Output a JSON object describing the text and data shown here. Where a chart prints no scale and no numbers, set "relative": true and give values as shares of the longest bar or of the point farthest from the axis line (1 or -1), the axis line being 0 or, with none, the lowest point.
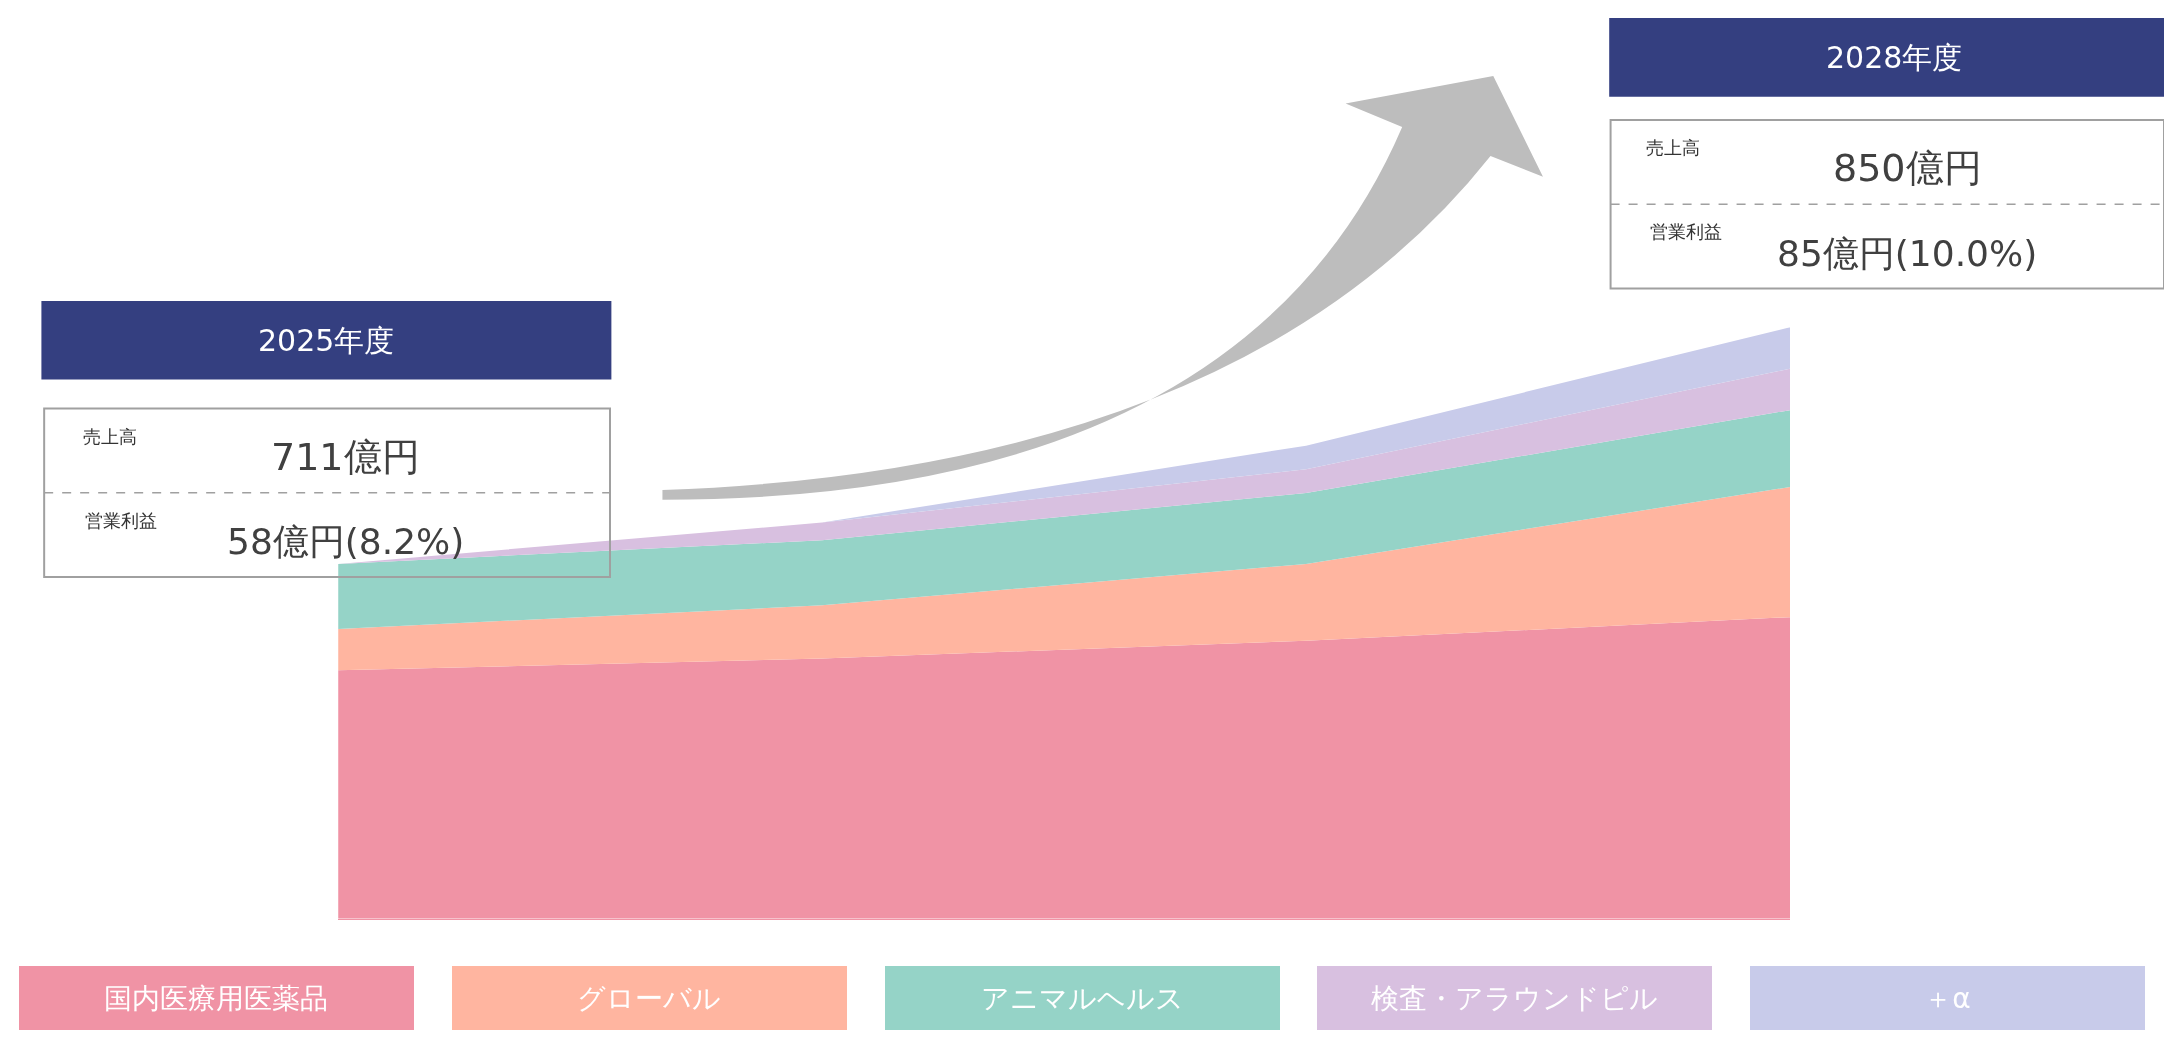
{
  "chart_data": {
    "type": "area",
    "stacked": true,
    "relative": true,
    "categories": [
      null,
      null,
      null,
      null
    ],
    "series": [
      {
        "name": "国内医療用医薬品",
        "color": "#f093a5",
        "values": [
          0.42,
          0.44,
          0.47,
          0.51
        ]
      },
      {
        "name": "グローバル",
        "color": "#ffb5a0",
        "values": [
          0.07,
          0.09,
          0.13,
          0.22
        ]
      },
      {
        "name": "アニマルヘルス",
        "color": "#95d3c7",
        "values": [
          0.11,
          0.11,
          0.12,
          0.13
        ]
      },
      {
        "name": "検査・アラウンドピル",
        "color": "#d8c0e0",
        "values": [
          0.0,
          0.03,
          0.04,
          0.07
        ]
      },
      {
        "name": "＋α",
        "color": "#c8cbea",
        "values": [
          0.0,
          0.0,
          0.04,
          0.07
        ]
      }
    ],
    "legend": "bottom",
    "annotations": [
      "2025年度",
      "売上高",
      "711億円",
      "営業利益",
      "58億円(8.2%)",
      "2028年度",
      "売上高",
      "850億円",
      "営業利益",
      "85億円(10.0%)"
    ]
  }
}
